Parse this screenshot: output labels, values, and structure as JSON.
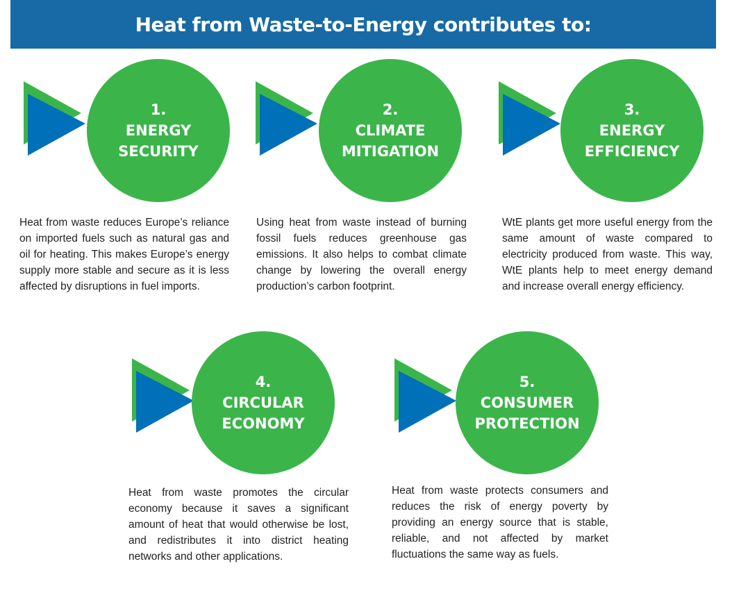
{
  "title": "Heat from Waste-to-Energy contributes to:",
  "colors": {
    "header": "#176aa6",
    "circle": "#3bb54a",
    "triangle_back": "#3bb54a",
    "triangle_front": "#0070b8"
  },
  "items": [
    {
      "number": "1.",
      "line1": "ENERGY",
      "line2": "SECURITY",
      "text": "Heat from waste reduces Europe’s reliance on imported fuels such as natural gas and oil for heating. This makes Europe’s energy supply more stable and secure as it is less affected by disruptions in fuel imports."
    },
    {
      "number": "2.",
      "line1": "CLIMATE",
      "line2": "MITIGATION",
      "text": "Using heat from waste instead of burning fossil fuels reduces greenhouse gas emissions. It also helps to combat climate change by lowering the overall energy production’s carbon footprint."
    },
    {
      "number": "3.",
      "line1": "ENERGY",
      "line2": "EFFICIENCY",
      "text": "WtE plants get more useful energy from the same amount of waste compared to electricity produced from waste. This way, WtE plants help to meet energy demand and increase overall energy efficiency."
    },
    {
      "number": "4.",
      "line1": "CIRCULAR",
      "line2": "ECONOMY",
      "text": "Heat from waste promotes the circular economy because it saves a significant amount of heat that would otherwise be lost, and redistributes it into district heating networks and other applications."
    },
    {
      "number": "5.",
      "line1": "CONSUMER",
      "line2": "PROTECTION",
      "text": "Heat from waste protects consumers and reduces the risk of energy poverty by providing an energy source that is stable, reliable, and not affected by market fluctuations the same way as fuels."
    }
  ]
}
